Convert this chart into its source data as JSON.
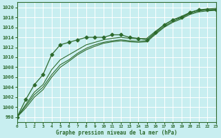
{
  "xlabel": "Graphe pression niveau de la mer (hPa)",
  "ylim": [
    997,
    1021
  ],
  "xlim": [
    0,
    23
  ],
  "yticks": [
    998,
    1000,
    1002,
    1004,
    1006,
    1008,
    1010,
    1012,
    1014,
    1016,
    1018,
    1020
  ],
  "xticks": [
    0,
    1,
    2,
    3,
    4,
    5,
    6,
    7,
    8,
    9,
    10,
    11,
    12,
    13,
    14,
    15,
    16,
    17,
    18,
    19,
    20,
    21,
    22,
    23
  ],
  "background_color": "#c8eef0",
  "grid_color": "#ffffff",
  "line_color": "#2d6a2d",
  "series": [
    {
      "x": [
        0,
        1,
        2,
        3,
        4,
        5,
        6,
        7,
        8,
        9,
        10,
        11,
        12,
        13,
        14,
        15,
        16,
        17,
        18,
        19,
        20,
        21,
        22,
        23
      ],
      "y": [
        998.0,
        1001.5,
        1004.5,
        1006.5,
        1010.5,
        1012.5,
        1013.0,
        1013.5,
        1014.0,
        1014.0,
        1014.0,
        1014.5,
        1014.5,
        1014.0,
        1013.8,
        1013.5,
        1015.0,
        1016.5,
        1017.5,
        1018.0,
        1019.0,
        1019.5,
        1019.5,
        1019.5
      ],
      "marker": "D",
      "markersize": 2.5
    },
    {
      "x": [
        0,
        1,
        2,
        3,
        4,
        5,
        6,
        7,
        8,
        9,
        10,
        11,
        12,
        13,
        14,
        15,
        16,
        17,
        18,
        19,
        20,
        21,
        22,
        23
      ],
      "y": [
        998.0,
        1000.5,
        1003.0,
        1004.5,
        1007.5,
        1009.5,
        1010.5,
        1011.5,
        1012.5,
        1013.0,
        1013.5,
        1013.8,
        1014.0,
        1013.8,
        1013.7,
        1013.8,
        1015.2,
        1016.5,
        1017.5,
        1018.2,
        1019.0,
        1019.5,
        1019.7,
        1019.8
      ],
      "marker": null,
      "markersize": 0
    },
    {
      "x": [
        0,
        1,
        2,
        3,
        4,
        5,
        6,
        7,
        8,
        9,
        10,
        11,
        12,
        13,
        14,
        15,
        16,
        17,
        18,
        19,
        20,
        21,
        22,
        23
      ],
      "y": [
        998.0,
        1000.2,
        1002.5,
        1004.0,
        1006.5,
        1008.5,
        1009.5,
        1010.8,
        1011.8,
        1012.5,
        1013.0,
        1013.3,
        1013.5,
        1013.3,
        1013.2,
        1013.3,
        1014.8,
        1016.2,
        1017.2,
        1017.9,
        1018.8,
        1019.3,
        1019.5,
        1019.6
      ],
      "marker": null,
      "markersize": 0
    },
    {
      "x": [
        0,
        1,
        2,
        3,
        4,
        5,
        6,
        7,
        8,
        9,
        10,
        11,
        12,
        13,
        14,
        15,
        16,
        17,
        18,
        19,
        20,
        21,
        22,
        23
      ],
      "y": [
        998.0,
        999.8,
        1002.0,
        1003.5,
        1006.0,
        1008.0,
        1009.2,
        1010.5,
        1011.5,
        1012.2,
        1012.8,
        1013.1,
        1013.3,
        1013.1,
        1013.0,
        1013.1,
        1014.6,
        1016.0,
        1017.0,
        1017.7,
        1018.6,
        1019.1,
        1019.3,
        1019.4
      ],
      "marker": null,
      "markersize": 0
    }
  ]
}
